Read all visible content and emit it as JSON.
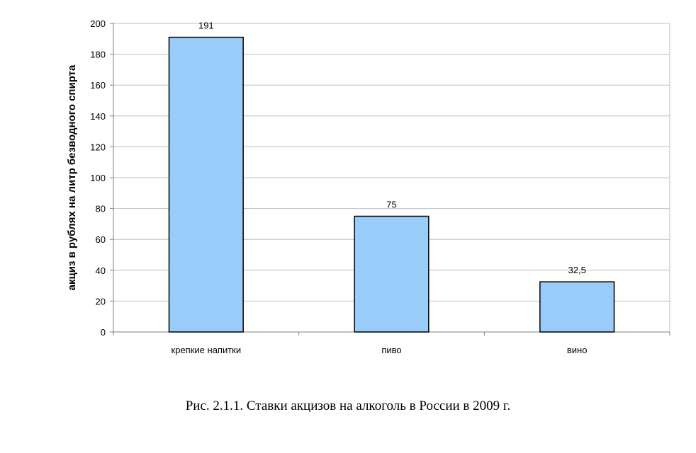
{
  "chart_data": {
    "type": "bar",
    "categories": [
      "крепкие напитки",
      "пиво",
      "вино"
    ],
    "values": [
      191,
      75,
      32.5
    ],
    "value_labels": [
      "191",
      "75",
      "32,5"
    ],
    "title": "",
    "xlabel": "",
    "ylabel": "акциз в рублях на литр безводного спирта",
    "ylim": [
      0,
      200
    ],
    "yticks": [
      0,
      20,
      40,
      60,
      80,
      100,
      120,
      140,
      160,
      180,
      200
    ],
    "grid": true,
    "legend": "none",
    "bar_color": "#99ccf8",
    "bar_stroke": "#000000",
    "grid_color": "#bfbfbf"
  },
  "caption": "Рис. 2.1.1. Ставки акцизов на алкоголь в России в 2009 г."
}
